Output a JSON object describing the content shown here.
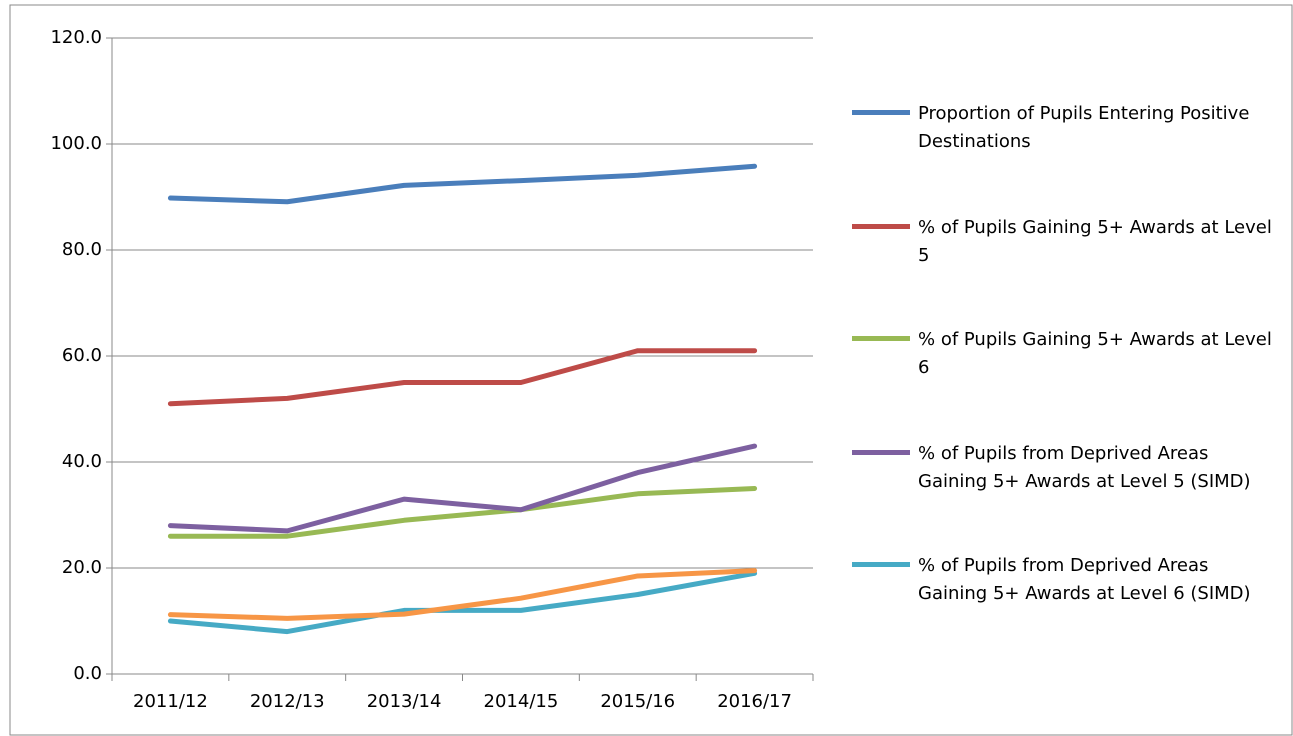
{
  "chart_data": {
    "type": "line",
    "categories": [
      "2011/12",
      "2012/13",
      "2013/14",
      "2014/15",
      "2015/16",
      "2016/17"
    ],
    "series": [
      {
        "name": "Proportion of Pupils Entering Positive Destinations",
        "color": "#4a7ebb",
        "values": [
          89.8,
          89.1,
          92.2,
          93.1,
          94.1,
          95.8
        ]
      },
      {
        "name": "% of Pupils Gaining 5+ Awards at Level 5",
        "color": "#be4b48",
        "values": [
          51,
          52,
          55,
          55,
          61,
          61
        ]
      },
      {
        "name": "% of Pupils Gaining 5+ Awards at Level 6",
        "color": "#98b954",
        "values": [
          26,
          26,
          29,
          31,
          34,
          35
        ]
      },
      {
        "name": "% of Pupils from Deprived Areas Gaining 5+ Awards at Level 5 (SIMD)",
        "color": "#7d60a0",
        "values": [
          28,
          27,
          33,
          31,
          38,
          43
        ]
      },
      {
        "name": "% of Pupils from Deprived Areas Gaining 5+ Awards at Level 6 (SIMD)",
        "color": "#46aac5",
        "values": [
          10,
          8,
          12,
          12,
          15,
          19
        ]
      },
      {
        "color": "#f79646",
        "values": [
          11.2,
          10.5,
          11.3,
          14.3,
          18.5,
          19.5
        ]
      }
    ],
    "ylim": [
      0,
      120
    ],
    "yticks": [
      {
        "value": 0,
        "label": "0.0"
      },
      {
        "value": 20,
        "label": "20.0"
      },
      {
        "value": 40,
        "label": "40.0"
      },
      {
        "value": 60,
        "label": "60.0"
      },
      {
        "value": 80,
        "label": "80.0"
      },
      {
        "value": 100,
        "label": "100.0"
      },
      {
        "value": 120,
        "label": "120.0"
      }
    ],
    "grid": true,
    "legend": "right"
  }
}
